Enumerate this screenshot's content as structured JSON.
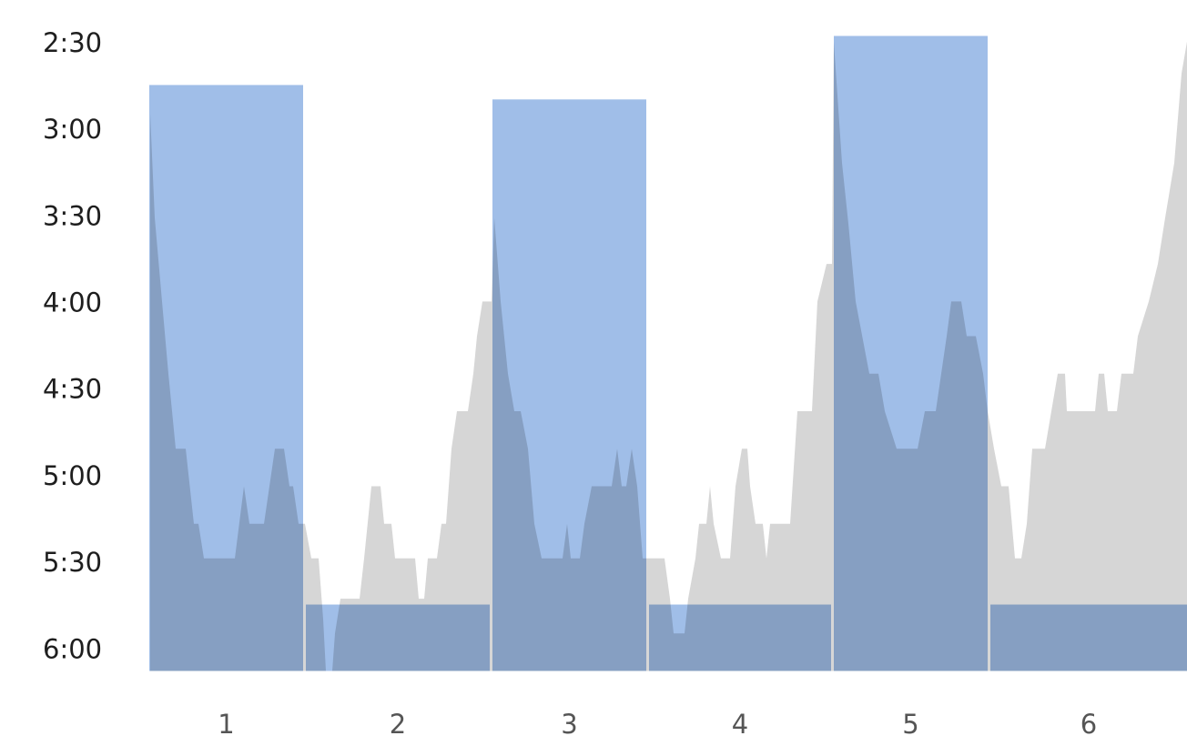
{
  "chart_data": {
    "type": "interval-pace",
    "ylim": [
      147,
      367
    ],
    "y_inverted": true,
    "yticks": [
      {
        "value": 150,
        "label": "2:30"
      },
      {
        "value": 180,
        "label": "3:00"
      },
      {
        "value": 210,
        "label": "3:30"
      },
      {
        "value": 240,
        "label": "4:00"
      },
      {
        "value": 270,
        "label": "4:30"
      },
      {
        "value": 300,
        "label": "5:00"
      },
      {
        "value": 330,
        "label": "5:30"
      },
      {
        "value": 360,
        "label": "6:00"
      }
    ],
    "xlim": [
      0,
      1140
    ],
    "categories": [
      "1",
      "2",
      "3",
      "4",
      "5",
      "6"
    ],
    "bars": {
      "color": "#a0bee8",
      "starts": [
        0,
        172,
        377,
        549,
        752,
        924
      ],
      "ends": [
        169,
        374,
        546,
        749,
        921,
        1140
      ],
      "values": [
        164,
        344,
        169,
        344,
        147,
        344
      ]
    },
    "area": {
      "color": "#d6d6d6",
      "x": [
        1,
        6,
        14,
        21,
        29,
        40,
        49,
        54,
        60,
        94,
        104,
        110,
        126,
        138,
        148,
        154,
        158,
        164,
        171,
        178,
        186,
        191,
        194,
        201,
        204,
        210,
        231,
        236,
        244,
        254,
        258,
        266,
        270,
        292,
        296,
        302,
        306,
        316,
        321,
        326,
        332,
        338,
        350,
        356,
        360,
        366,
        376,
        379,
        386,
        394,
        401,
        408,
        416,
        423,
        431,
        454,
        459,
        463,
        473,
        478,
        486,
        508,
        514,
        519,
        524,
        530,
        536,
        542,
        566,
        572,
        576,
        588,
        592,
        600,
        604,
        612,
        616,
        620,
        628,
        638,
        644,
        651,
        657,
        660,
        666,
        674,
        678,
        682,
        704,
        712,
        728,
        734,
        744,
        750,
        752,
        761,
        768,
        776,
        791,
        801,
        808,
        821,
        844,
        852,
        864,
        876,
        881,
        892,
        898,
        908,
        916,
        921,
        928,
        936,
        944,
        951,
        958,
        964,
        970,
        984,
        991,
        998,
        1006,
        1008,
        1039,
        1043,
        1049,
        1053,
        1063,
        1068,
        1081,
        1086,
        1098,
        1108,
        1116,
        1126,
        1134,
        1140
      ],
      "values": [
        174,
        210,
        239,
        264,
        290,
        290,
        316,
        316,
        328,
        328,
        303,
        316,
        316,
        290,
        290,
        303,
        303,
        316,
        316,
        328,
        328,
        349,
        367,
        367,
        354,
        342,
        342,
        328,
        303,
        303,
        316,
        316,
        328,
        328,
        342,
        342,
        328,
        328,
        316,
        316,
        290,
        277,
        277,
        264,
        251,
        239,
        239,
        210,
        239,
        264,
        277,
        277,
        290,
        316,
        328,
        328,
        316,
        328,
        328,
        316,
        303,
        303,
        290,
        303,
        303,
        290,
        303,
        328,
        328,
        342,
        354,
        354,
        342,
        328,
        316,
        316,
        303,
        316,
        328,
        328,
        303,
        290,
        290,
        303,
        316,
        316,
        328,
        316,
        316,
        277,
        277,
        239,
        226,
        226,
        149,
        191,
        212,
        239,
        264,
        264,
        277,
        290,
        290,
        277,
        277,
        251,
        239,
        239,
        251,
        251,
        264,
        277,
        290,
        303,
        303,
        328,
        328,
        316,
        290,
        290,
        277,
        264,
        264,
        277,
        277,
        264,
        264,
        277,
        277,
        264,
        264,
        251,
        239,
        226,
        210,
        191,
        160,
        149
      ]
    }
  }
}
